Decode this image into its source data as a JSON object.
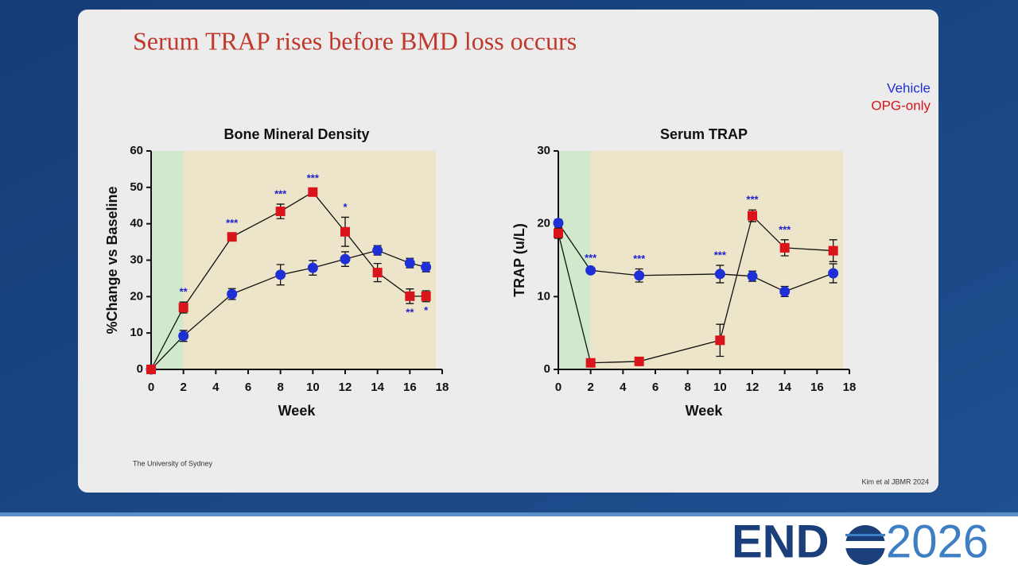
{
  "slide": {
    "title": "Serum TRAP rises before BMD loss occurs",
    "footer_left": "The University of Sydney",
    "footer_right": "Kim et al JBMR 2024",
    "logo_left": "END",
    "logo_right": "2026"
  },
  "chart_data": [
    {
      "type": "line",
      "title": "Bone Mineral Density",
      "x_label": "Week",
      "y_label": "%Change vs Baseline",
      "x": [
        0,
        2,
        5,
        8,
        10,
        12,
        14,
        16,
        17
      ],
      "series": [
        {
          "name": "Vehicle",
          "color": "#1f2fd6",
          "marker": "circle",
          "values": [
            0,
            9.2,
            20.7,
            26,
            27.9,
            30.3,
            32.7,
            29.2,
            28.1
          ],
          "errors": [
            0,
            1.5,
            1.5,
            2.8,
            2,
            2,
            1.3,
            1.3,
            1.3
          ]
        },
        {
          "name": "OPG-only",
          "color": "#d9141b",
          "marker": "square",
          "values": [
            0,
            17,
            36.4,
            43.4,
            48.7,
            37.8,
            26.6,
            20.1,
            20.1
          ],
          "errors": [
            0,
            1.5,
            1,
            2,
            1,
            4,
            2.5,
            2,
            1.5
          ]
        }
      ],
      "annotations": [
        {
          "x": 2,
          "text": "**"
        },
        {
          "x": 5,
          "text": "***"
        },
        {
          "x": 8,
          "text": "***"
        },
        {
          "x": 10,
          "text": "***"
        },
        {
          "x": 12,
          "text": "*"
        },
        {
          "x": 16,
          "text": "**",
          "placement": "below"
        },
        {
          "x": 17,
          "text": "*",
          "placement": "below"
        }
      ],
      "annotation_color": "#2222cc",
      "shaded": [
        {
          "from": 0,
          "to": 2,
          "color": "#d2e8cc"
        },
        {
          "from": 2,
          "to": 17.6,
          "color": "#ece5c9"
        }
      ],
      "xlim": [
        0,
        18
      ],
      "xticks": [
        0,
        2,
        4,
        6,
        8,
        10,
        12,
        14,
        16,
        18
      ],
      "ylim": [
        0,
        60
      ],
      "yticks": [
        0,
        10,
        20,
        30,
        40,
        50,
        60
      ]
    },
    {
      "type": "line",
      "title": "Serum TRAP",
      "x_label": "Week",
      "y_label": "TRAP (u/L)",
      "x": [
        0,
        2,
        5,
        10,
        12,
        14,
        17
      ],
      "series": [
        {
          "name": "Vehicle",
          "color": "#1f2fd6",
          "marker": "circle",
          "values": [
            20.1,
            13.6,
            12.9,
            13.1,
            12.8,
            10.7,
            13.2
          ],
          "errors": [
            0.5,
            0.3,
            0.9,
            1.2,
            0.7,
            0.7,
            1.3
          ]
        },
        {
          "name": "OPG-only",
          "color": "#d9141b",
          "marker": "square",
          "values": [
            18.7,
            0.9,
            1.1,
            4.0,
            21.1,
            16.7,
            16.3
          ],
          "errors": [
            0.7,
            0.3,
            0.3,
            2.2,
            0.8,
            1.1,
            1.5
          ]
        }
      ],
      "annotations": [
        {
          "x": 2,
          "text": "***"
        },
        {
          "x": 5,
          "text": "***"
        },
        {
          "x": 10,
          "text": "***"
        },
        {
          "x": 12,
          "text": "***"
        },
        {
          "x": 14,
          "text": "***"
        }
      ],
      "annotation_color": "#2222cc",
      "shaded": [
        {
          "from": 0,
          "to": 2,
          "color": "#d2e8cc"
        },
        {
          "from": 2,
          "to": 17.6,
          "color": "#ece5c9"
        }
      ],
      "xlim": [
        0,
        18
      ],
      "xticks": [
        0,
        2,
        4,
        6,
        8,
        10,
        12,
        14,
        16,
        18
      ],
      "ylim": [
        0,
        30
      ],
      "yticks": [
        0,
        10,
        20,
        30
      ]
    }
  ]
}
